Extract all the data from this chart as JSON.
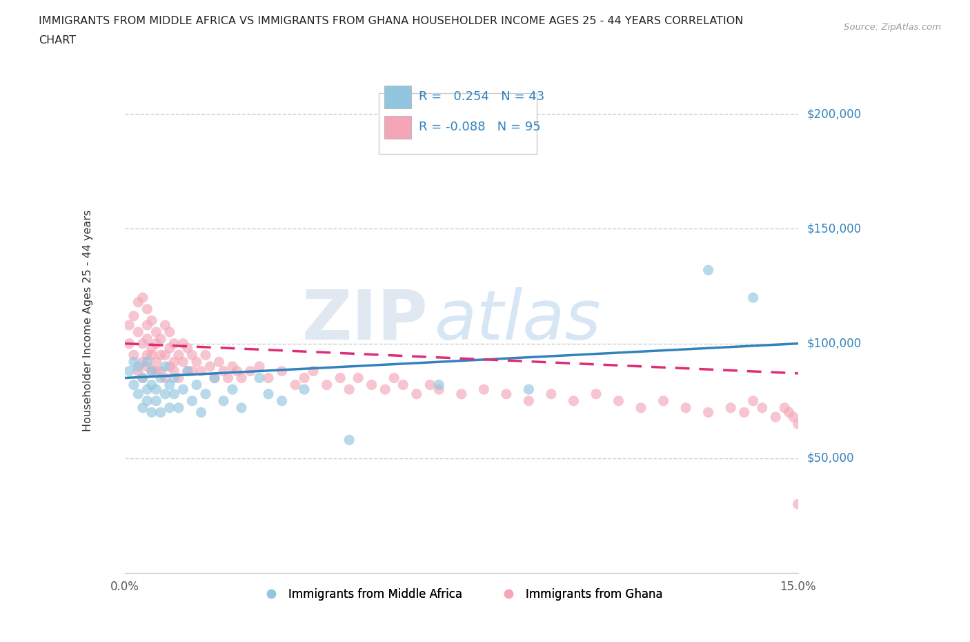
{
  "title_line1": "IMMIGRANTS FROM MIDDLE AFRICA VS IMMIGRANTS FROM GHANA HOUSEHOLDER INCOME AGES 25 - 44 YEARS CORRELATION",
  "title_line2": "CHART",
  "source_text": "Source: ZipAtlas.com",
  "ylabel": "Householder Income Ages 25 - 44 years",
  "xlim": [
    0.0,
    0.15
  ],
  "ylim": [
    0,
    220000
  ],
  "yticks": [
    50000,
    100000,
    150000,
    200000
  ],
  "ytick_labels": [
    "$50,000",
    "$100,000",
    "$150,000",
    "$200,000"
  ],
  "xticks": [
    0.0,
    0.03,
    0.06,
    0.09,
    0.12,
    0.15
  ],
  "xtick_labels": [
    "0.0%",
    "",
    "",
    "",
    "",
    "15.0%"
  ],
  "blue_color": "#92c5de",
  "pink_color": "#f4a6b8",
  "blue_line_color": "#3182bd",
  "pink_line_color": "#de2d78",
  "legend_r_blue": "0.254",
  "legend_n_blue": "43",
  "legend_r_pink": "-0.088",
  "legend_n_pink": "95",
  "legend_label_blue": "Immigrants from Middle Africa",
  "legend_label_pink": "Immigrants from Ghana",
  "watermark_zip": "ZIP",
  "watermark_atlas": "atlas",
  "grid_color": "#cccccc",
  "blue_scatter_x": [
    0.001,
    0.002,
    0.002,
    0.003,
    0.003,
    0.004,
    0.004,
    0.005,
    0.005,
    0.005,
    0.006,
    0.006,
    0.006,
    0.007,
    0.007,
    0.008,
    0.008,
    0.009,
    0.009,
    0.01,
    0.01,
    0.011,
    0.011,
    0.012,
    0.013,
    0.014,
    0.015,
    0.016,
    0.017,
    0.018,
    0.02,
    0.022,
    0.024,
    0.026,
    0.03,
    0.032,
    0.035,
    0.04,
    0.05,
    0.07,
    0.09,
    0.13,
    0.14
  ],
  "blue_scatter_y": [
    88000,
    82000,
    92000,
    78000,
    90000,
    85000,
    72000,
    80000,
    92000,
    75000,
    70000,
    88000,
    82000,
    75000,
    80000,
    85000,
    70000,
    78000,
    90000,
    72000,
    82000,
    78000,
    85000,
    72000,
    80000,
    88000,
    75000,
    82000,
    70000,
    78000,
    85000,
    75000,
    80000,
    72000,
    85000,
    78000,
    75000,
    80000,
    58000,
    82000,
    80000,
    132000,
    120000
  ],
  "pink_scatter_x": [
    0.001,
    0.001,
    0.002,
    0.002,
    0.003,
    0.003,
    0.003,
    0.004,
    0.004,
    0.004,
    0.004,
    0.005,
    0.005,
    0.005,
    0.005,
    0.005,
    0.006,
    0.006,
    0.006,
    0.006,
    0.007,
    0.007,
    0.007,
    0.007,
    0.008,
    0.008,
    0.008,
    0.009,
    0.009,
    0.009,
    0.01,
    0.01,
    0.01,
    0.011,
    0.011,
    0.011,
    0.012,
    0.012,
    0.013,
    0.013,
    0.014,
    0.014,
    0.015,
    0.015,
    0.016,
    0.017,
    0.018,
    0.019,
    0.02,
    0.021,
    0.022,
    0.023,
    0.024,
    0.025,
    0.026,
    0.028,
    0.03,
    0.032,
    0.035,
    0.038,
    0.04,
    0.042,
    0.045,
    0.048,
    0.05,
    0.052,
    0.055,
    0.058,
    0.06,
    0.062,
    0.065,
    0.068,
    0.07,
    0.075,
    0.08,
    0.085,
    0.09,
    0.095,
    0.1,
    0.105,
    0.11,
    0.115,
    0.12,
    0.125,
    0.13,
    0.135,
    0.138,
    0.14,
    0.142,
    0.145,
    0.147,
    0.148,
    0.149,
    0.15,
    0.15
  ],
  "pink_scatter_y": [
    100000,
    108000,
    95000,
    112000,
    88000,
    105000,
    118000,
    92000,
    100000,
    120000,
    85000,
    95000,
    108000,
    115000,
    90000,
    102000,
    98000,
    88000,
    110000,
    95000,
    105000,
    92000,
    88000,
    100000,
    95000,
    102000,
    88000,
    95000,
    108000,
    85000,
    98000,
    105000,
    90000,
    92000,
    100000,
    88000,
    95000,
    85000,
    100000,
    92000,
    88000,
    98000,
    95000,
    88000,
    92000,
    88000,
    95000,
    90000,
    85000,
    92000,
    88000,
    85000,
    90000,
    88000,
    85000,
    88000,
    90000,
    85000,
    88000,
    82000,
    85000,
    88000,
    82000,
    85000,
    80000,
    85000,
    82000,
    80000,
    85000,
    82000,
    78000,
    82000,
    80000,
    78000,
    80000,
    78000,
    75000,
    78000,
    75000,
    78000,
    75000,
    72000,
    75000,
    72000,
    70000,
    72000,
    70000,
    75000,
    72000,
    68000,
    72000,
    70000,
    68000,
    65000,
    30000
  ]
}
